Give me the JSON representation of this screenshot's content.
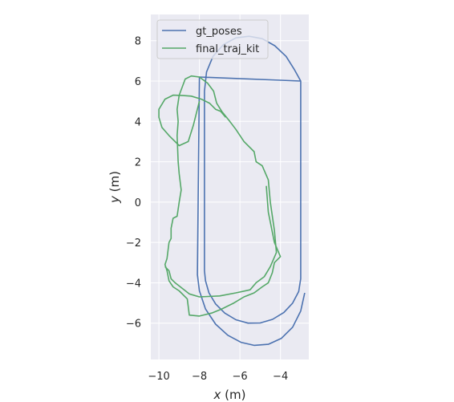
{
  "chart_data": {
    "type": "line",
    "title": "",
    "xlabel_var": "x",
    "xlabel_unit": "(m)",
    "ylabel_var": "y",
    "ylabel_unit": "(m)",
    "xlim": [
      -10.4,
      -2.6
    ],
    "ylim": [
      -7.8,
      9.3
    ],
    "xticks": [
      -10,
      -8,
      -6,
      -4
    ],
    "yticks": [
      -6,
      -4,
      -2,
      0,
      2,
      4,
      6,
      8
    ],
    "xtick_labels": [
      "−10",
      "−8",
      "−6",
      "−4"
    ],
    "ytick_labels": [
      "−6",
      "−4",
      "−2",
      "0",
      "2",
      "4",
      "6",
      "8"
    ],
    "grid": true,
    "legend_position": "upper-left",
    "series": [
      {
        "name": "gt_poses",
        "color": "#4c72b0",
        "points": [
          [
            -3.0,
            6.0
          ],
          [
            -3.0,
            -3.8
          ],
          [
            -3.1,
            -4.43
          ],
          [
            -3.4,
            -5.01
          ],
          [
            -3.83,
            -5.47
          ],
          [
            -4.39,
            -5.81
          ],
          [
            -5.0,
            -5.99
          ],
          [
            -5.6,
            -6.0
          ],
          [
            -6.2,
            -5.83
          ],
          [
            -6.75,
            -5.5
          ],
          [
            -7.2,
            -5.05
          ],
          [
            -7.53,
            -4.5
          ],
          [
            -7.7,
            -3.9
          ],
          [
            -7.75,
            -3.4
          ],
          [
            -7.75,
            5.5
          ],
          [
            -7.65,
            6.45
          ],
          [
            -7.33,
            7.22
          ],
          [
            -6.82,
            7.8
          ],
          [
            -6.2,
            8.14
          ],
          [
            -5.55,
            8.22
          ],
          [
            -4.9,
            8.1
          ],
          [
            -4.28,
            7.75
          ],
          [
            -3.72,
            7.22
          ],
          [
            -3.3,
            6.55
          ],
          [
            -3.0,
            6.0
          ],
          [
            -8.0,
            6.2
          ],
          [
            -8.1,
            -3.6
          ],
          [
            -8.0,
            -4.4
          ],
          [
            -7.7,
            -5.3
          ],
          [
            -7.2,
            -6.05
          ],
          [
            -6.6,
            -6.6
          ],
          [
            -5.95,
            -6.95
          ],
          [
            -5.3,
            -7.1
          ],
          [
            -4.6,
            -7.05
          ],
          [
            -3.95,
            -6.75
          ],
          [
            -3.4,
            -6.2
          ],
          [
            -3.0,
            -5.4
          ],
          [
            -2.8,
            -4.5
          ]
        ]
      },
      {
        "name": "final_traj_kit",
        "color": "#55a868",
        "points": [
          [
            -4.7,
            0.8
          ],
          [
            -4.6,
            -0.5
          ],
          [
            -4.3,
            -2.0
          ],
          [
            -4.0,
            -2.7
          ],
          [
            -4.3,
            -3.0
          ],
          [
            -4.4,
            -3.5
          ],
          [
            -4.6,
            -4.0
          ],
          [
            -4.9,
            -4.2
          ],
          [
            -5.3,
            -4.5
          ],
          [
            -5.8,
            -4.7
          ],
          [
            -6.3,
            -5.0
          ],
          [
            -6.9,
            -5.3
          ],
          [
            -7.4,
            -5.5
          ],
          [
            -8.0,
            -5.65
          ],
          [
            -8.5,
            -5.6
          ],
          [
            -8.6,
            -4.8
          ],
          [
            -9.0,
            -4.4
          ],
          [
            -9.3,
            -4.2
          ],
          [
            -9.5,
            -3.9
          ],
          [
            -9.6,
            -3.4
          ],
          [
            -9.7,
            -3.1
          ],
          [
            -9.6,
            -2.8
          ],
          [
            -9.5,
            -2.0
          ],
          [
            -9.4,
            -1.8
          ],
          [
            -9.4,
            -1.3
          ],
          [
            -9.3,
            -0.8
          ],
          [
            -9.1,
            -0.7
          ],
          [
            -9.0,
            0.0
          ],
          [
            -8.9,
            0.6
          ],
          [
            -9.0,
            1.4
          ],
          [
            -9.05,
            2.0
          ],
          [
            -9.1,
            3.3
          ],
          [
            -9.05,
            4.0
          ],
          [
            -9.1,
            4.6
          ],
          [
            -9.0,
            5.3
          ],
          [
            -8.7,
            6.1
          ],
          [
            -8.4,
            6.25
          ],
          [
            -8.0,
            6.2
          ],
          [
            -7.6,
            5.9
          ],
          [
            -7.3,
            5.5
          ],
          [
            -7.15,
            4.9
          ],
          [
            -6.9,
            4.5
          ],
          [
            -6.5,
            4.0
          ],
          [
            -6.2,
            3.6
          ],
          [
            -5.8,
            3.0
          ],
          [
            -5.3,
            2.5
          ],
          [
            -5.2,
            2.0
          ],
          [
            -4.9,
            1.8
          ],
          [
            -4.6,
            1.1
          ],
          [
            -4.5,
            0.0
          ],
          [
            -4.3,
            -1.4
          ],
          [
            -4.2,
            -2.5
          ],
          [
            -4.5,
            -3.2
          ],
          [
            -4.8,
            -3.7
          ],
          [
            -5.2,
            -4.0
          ],
          [
            -5.5,
            -4.35
          ],
          [
            -6.2,
            -4.5
          ],
          [
            -7.0,
            -4.65
          ],
          [
            -8.0,
            -4.7
          ],
          [
            -8.5,
            -4.55
          ],
          [
            -9.2,
            -4.0
          ],
          [
            -9.4,
            -3.8
          ],
          [
            -9.5,
            -3.4
          ],
          [
            -9.7,
            -3.2
          ]
        ]
      },
      {
        "name": "",
        "color": "#55a868",
        "points": [
          [
            -8.0,
            5.0
          ],
          [
            -8.3,
            3.8
          ],
          [
            -8.55,
            3.0
          ],
          [
            -9.0,
            2.8
          ],
          [
            -9.5,
            3.3
          ],
          [
            -9.85,
            3.7
          ],
          [
            -10.0,
            4.2
          ],
          [
            -10.0,
            4.6
          ],
          [
            -9.7,
            5.1
          ],
          [
            -9.3,
            5.3
          ],
          [
            -8.8,
            5.28
          ],
          [
            -8.4,
            5.25
          ],
          [
            -7.9,
            5.1
          ],
          [
            -7.5,
            4.9
          ],
          [
            -7.2,
            4.6
          ],
          [
            -6.95,
            4.5
          ],
          [
            -6.7,
            4.2
          ]
        ]
      }
    ]
  }
}
